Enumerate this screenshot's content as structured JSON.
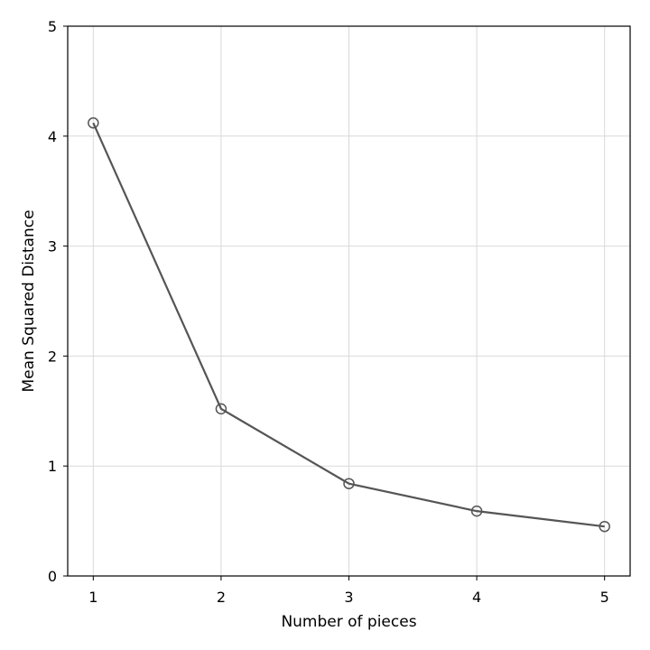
{
  "chart_data": {
    "type": "line",
    "title": "",
    "xlabel": "Number of pieces",
    "ylabel": "Mean Squared Distance",
    "xlim": [
      0.8,
      5.2
    ],
    "ylim": [
      0,
      5
    ],
    "x": [
      1,
      2,
      3,
      4,
      5
    ],
    "series": [
      {
        "values": [
          4.12,
          1.52,
          0.84,
          0.59,
          0.45
        ]
      }
    ],
    "xticks": [
      "1",
      "2",
      "3",
      "4",
      "5"
    ],
    "yticks": [
      "0",
      "1",
      "2",
      "3",
      "4",
      "5"
    ],
    "grid": true,
    "marker": "open-circle",
    "colors": {
      "line": "#555555",
      "grid": "#d9d9d9",
      "axes": "#000000"
    }
  }
}
